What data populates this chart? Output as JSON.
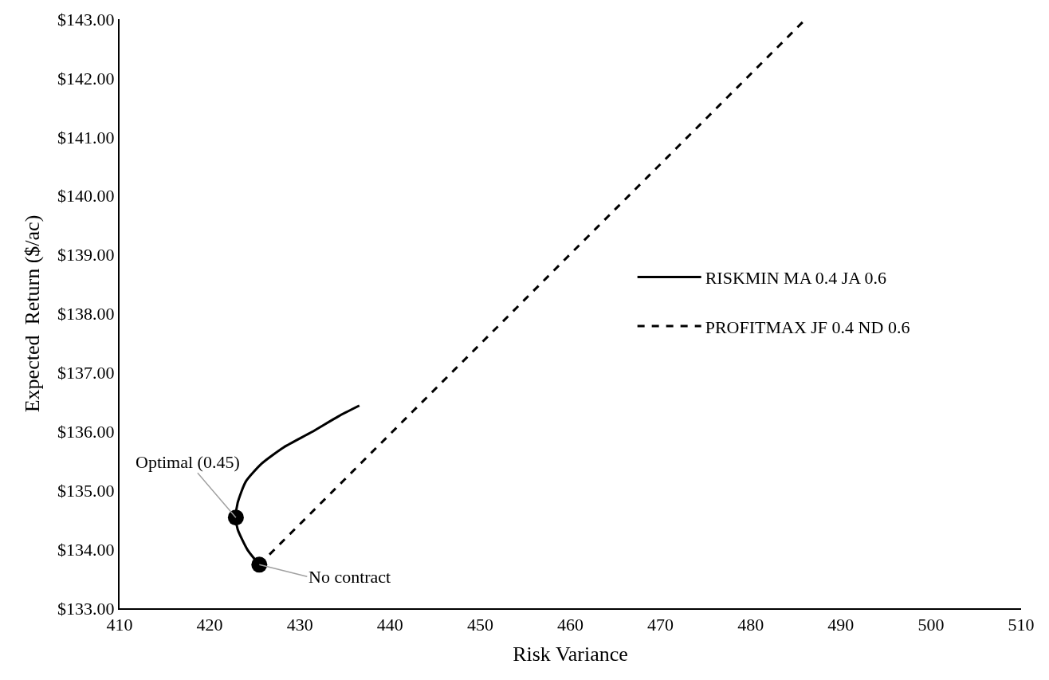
{
  "chart_data": {
    "type": "line",
    "xlabel": "Risk Variance",
    "ylabel": "Expected  Return ($/ac)",
    "xlim": [
      410,
      510
    ],
    "xticks": [
      410,
      420,
      430,
      440,
      450,
      460,
      470,
      480,
      490,
      500,
      510
    ],
    "ylim": [
      133,
      143
    ],
    "yticks": [
      {
        "value": 133,
        "label": "$133.00"
      },
      {
        "value": 134,
        "label": "$134.00"
      },
      {
        "value": 135,
        "label": "$135.00"
      },
      {
        "value": 136,
        "label": "$136.00"
      },
      {
        "value": 137,
        "label": "$137.00"
      },
      {
        "value": 138,
        "label": "$138.00"
      },
      {
        "value": 139,
        "label": "$139.00"
      },
      {
        "value": 140,
        "label": "$140.00"
      },
      {
        "value": 141,
        "label": "$141.00"
      },
      {
        "value": 142,
        "label": "$142.00"
      },
      {
        "value": 143,
        "label": "$143.00"
      }
    ],
    "legend": "right",
    "series": [
      {
        "name": "RISKMIN MA 0.4 JA 0.6",
        "color": "#000000",
        "line_style": "solid",
        "marker": "none",
        "x": [
          425.5,
          424.2,
          423.1,
          422.9,
          423.1,
          424.0,
          425.8,
          428.2,
          431.3,
          434.3,
          436.6
        ],
        "values": [
          133.74,
          133.99,
          134.34,
          134.54,
          134.79,
          135.15,
          135.46,
          135.73,
          135.99,
          136.26,
          136.44
        ]
      },
      {
        "name": "PROFITMAX JF 0.4 ND 0.6",
        "color": "#000000",
        "line_style": "dashed",
        "marker": "none",
        "x": [
          425.5,
          486.1
        ],
        "values": [
          133.74,
          143.0
        ]
      },
      {
        "type": "scatter",
        "color": "#000000",
        "marker": "circle",
        "x": [
          422.9,
          425.5
        ],
        "values": [
          134.54,
          133.74
        ]
      }
    ],
    "annotations": [
      {
        "text": "Optimal (0.45)",
        "x": 422.9,
        "y": 134.54
      },
      {
        "text": "No contract",
        "x": 425.5,
        "y": 133.74
      }
    ]
  }
}
